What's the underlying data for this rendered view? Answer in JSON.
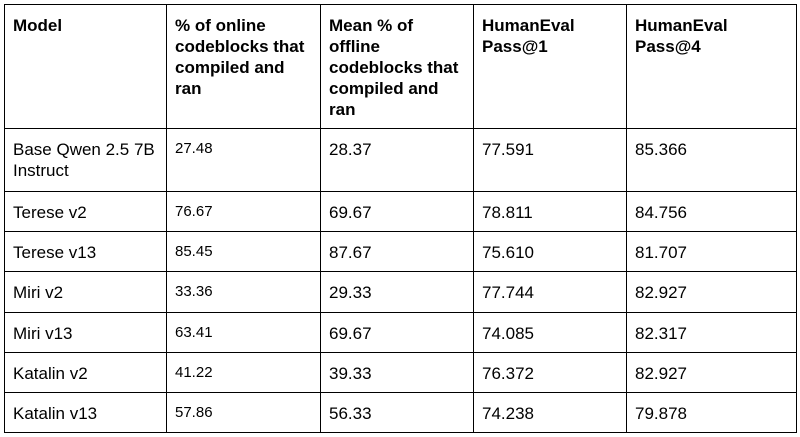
{
  "table": {
    "header": [
      "Model",
      "% of online codeblocks that compiled and ran",
      "Mean % of offline codeblocks that compiled and ran",
      "HumanEval Pass@1",
      "HumanEval Pass@4"
    ],
    "rows": [
      [
        "Base Qwen 2.5 7B Instruct",
        "27.48",
        "28.37",
        "77.591",
        "85.366"
      ],
      [
        "Terese v2",
        "76.67",
        "69.67",
        "78.811",
        "84.756"
      ],
      [
        "Terese v13",
        "85.45",
        "87.67",
        "75.610",
        "81.707"
      ],
      [
        "Miri v2",
        "33.36",
        "29.33",
        "77.744",
        "82.927"
      ],
      [
        "Miri v13",
        "63.41",
        "69.67",
        "74.085",
        "82.317"
      ],
      [
        "Katalin v2",
        "41.22",
        "39.33",
        "76.372",
        "82.927"
      ],
      [
        "Katalin v13",
        "57.86",
        "56.33",
        "74.238",
        "79.878"
      ]
    ]
  }
}
